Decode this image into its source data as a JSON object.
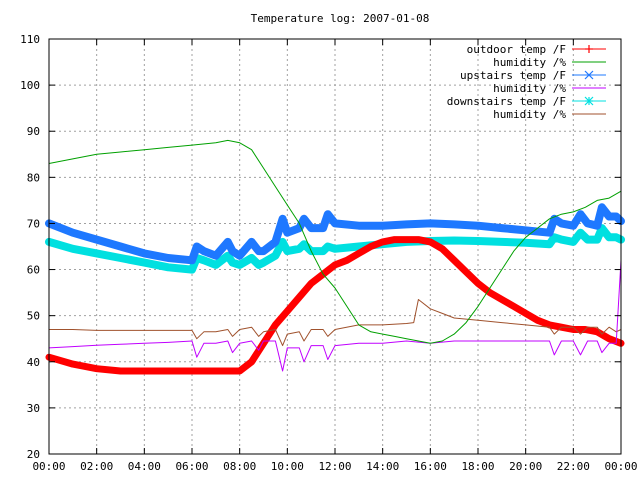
{
  "chart_data": {
    "type": "line",
    "title": "Temperature log: 2007-01-08",
    "xlabel": "",
    "ylabel": "",
    "xlim": [
      0,
      24
    ],
    "ylim": [
      20,
      110
    ],
    "grid": true,
    "legend_position": "top-right",
    "x_ticks": [
      "00:00",
      "02:00",
      "04:00",
      "06:00",
      "08:00",
      "10:00",
      "12:00",
      "14:00",
      "16:00",
      "18:00",
      "20:00",
      "22:00",
      "00:00"
    ],
    "y_ticks": [
      "20",
      "30",
      "40",
      "50",
      "60",
      "70",
      "80",
      "90",
      "100",
      "110"
    ],
    "series": [
      {
        "name": "outdoor temp /F",
        "color": "#ff0000",
        "marker": "plus",
        "x": [
          0,
          1,
          2,
          3,
          4,
          5,
          6,
          7,
          8,
          8.5,
          9,
          9.5,
          10,
          10.5,
          11,
          11.5,
          12,
          12.5,
          13,
          13.5,
          14,
          14.5,
          15,
          15.5,
          16,
          16.5,
          17,
          17.5,
          18,
          18.5,
          19,
          19.5,
          20,
          20.5,
          21,
          21.5,
          22,
          22.5,
          23,
          23.5,
          24
        ],
        "y": [
          41,
          39.5,
          38.5,
          38,
          38,
          38,
          38,
          38,
          38,
          40,
          44,
          48,
          51,
          54,
          57,
          59,
          61,
          62,
          63.5,
          65,
          66,
          66.5,
          66.5,
          66.5,
          66,
          64.5,
          62,
          59.5,
          57,
          55,
          53.5,
          52,
          50.5,
          49,
          48,
          47.5,
          47,
          47,
          46.5,
          45,
          44
        ]
      },
      {
        "name": "humidity /%",
        "color": "#00a000",
        "marker": "none",
        "x": [
          0,
          1,
          2,
          3,
          4,
          5,
          6,
          7,
          7.5,
          8,
          8.5,
          9,
          9.5,
          10,
          10.5,
          11,
          11.5,
          12,
          12.5,
          13,
          13.5,
          14,
          14.5,
          15,
          15.5,
          16,
          16.5,
          17,
          17.5,
          18,
          18.5,
          19,
          19.5,
          20,
          20.5,
          21,
          21.5,
          22,
          22.5,
          23,
          23.5,
          24
        ],
        "y": [
          83,
          84,
          85,
          85.5,
          86,
          86.5,
          87,
          87.5,
          88,
          87.5,
          86,
          82,
          78,
          74,
          70,
          64,
          59,
          56,
          52,
          48,
          46.5,
          46,
          45.5,
          45,
          44.5,
          44,
          44.5,
          46,
          48.5,
          52,
          56,
          60,
          64,
          67,
          69,
          71,
          72,
          72.5,
          73.5,
          75,
          75.5,
          77
        ]
      },
      {
        "name": "upstairs temp /F",
        "color": "#1e78ff",
        "marker": "x",
        "x": [
          0,
          1,
          2,
          3,
          4,
          5,
          6,
          6.2,
          6.5,
          7,
          7.5,
          7.7,
          8,
          8.5,
          8.8,
          9,
          9.5,
          9.8,
          10,
          10.5,
          10.7,
          11,
          11.5,
          11.7,
          12,
          13,
          14,
          15,
          16,
          17,
          18,
          19,
          20,
          21,
          21.2,
          21.5,
          22,
          22.3,
          22.6,
          23,
          23.2,
          23.5,
          23.8,
          24
        ],
        "y": [
          70,
          68,
          66.5,
          65,
          63.5,
          62.5,
          62,
          65,
          64,
          63,
          66,
          64,
          63,
          66,
          64,
          64,
          66,
          71,
          68,
          69,
          71,
          69,
          69,
          72,
          70,
          69.5,
          69.5,
          69.8,
          70,
          69.8,
          69.5,
          69,
          68.5,
          68,
          71,
          70,
          69.5,
          72,
          70,
          69.5,
          73.5,
          71.5,
          71.5,
          70.5
        ]
      },
      {
        "name": "humidity /%",
        "color": "#c000ff",
        "marker": "none",
        "x": [
          0,
          1,
          2,
          3,
          4,
          5,
          6,
          6.2,
          6.5,
          7,
          7.5,
          7.7,
          8,
          8.5,
          8.8,
          9,
          9.5,
          9.8,
          10,
          10.5,
          10.7,
          11,
          11.5,
          11.7,
          12,
          13,
          14,
          15,
          16,
          17,
          18,
          19,
          20,
          21,
          21.2,
          21.5,
          22,
          22.3,
          22.6,
          23,
          23.2,
          23.5,
          23.8,
          24
        ],
        "y": [
          43,
          43.3,
          43.6,
          43.8,
          44,
          44.2,
          44.5,
          41,
          44,
          44,
          44.5,
          42,
          44,
          44.5,
          42.5,
          44.5,
          44.5,
          38,
          43,
          43,
          40,
          43.5,
          43.5,
          40.5,
          43.5,
          44,
          44,
          44.5,
          44,
          44.5,
          44.5,
          44.5,
          44.5,
          44.5,
          41.5,
          44.5,
          44.5,
          41.5,
          44.5,
          44.5,
          42,
          44,
          44,
          62
        ]
      },
      {
        "name": "downstairs temp /F",
        "color": "#00e0e0",
        "marker": "star",
        "x": [
          0,
          1,
          2,
          3,
          4,
          5,
          6,
          6.2,
          6.5,
          7,
          7.5,
          7.7,
          8,
          8.5,
          8.8,
          9,
          9.5,
          9.8,
          10,
          10.5,
          10.7,
          11,
          11.5,
          11.7,
          12,
          13,
          14,
          15,
          16,
          17,
          18,
          19,
          20,
          21,
          21.2,
          21.5,
          22,
          22.3,
          22.6,
          23,
          23.2,
          23.5,
          23.8,
          24
        ],
        "y": [
          66,
          64.5,
          63.5,
          62.5,
          61.5,
          60.5,
          60,
          62.5,
          62,
          61,
          63,
          61.5,
          61,
          62.5,
          61,
          61.5,
          63,
          66,
          64,
          64.5,
          65.5,
          64,
          64,
          65,
          64.5,
          65,
          65.5,
          66,
          66.2,
          66.3,
          66.2,
          66,
          65.8,
          65.5,
          67,
          66.5,
          66,
          68,
          66.5,
          66.5,
          69,
          67,
          67,
          66.5
        ]
      },
      {
        "name": "humidity /%",
        "color": "#a0522d",
        "marker": "none",
        "x": [
          0,
          1,
          2,
          3,
          4,
          5,
          6,
          6.2,
          6.5,
          7,
          7.5,
          7.7,
          8,
          8.5,
          8.8,
          9,
          9.5,
          9.8,
          10,
          10.5,
          10.7,
          11,
          11.5,
          11.7,
          12,
          13,
          14,
          15,
          15.3,
          15.5,
          16,
          16.5,
          17,
          18,
          19,
          20,
          21,
          21.2,
          21.5,
          22,
          22.3,
          22.6,
          23,
          23.2,
          23.5,
          23.8,
          24
        ],
        "y": [
          47,
          47,
          46.8,
          46.8,
          46.8,
          46.8,
          46.8,
          45,
          46.5,
          46.5,
          47,
          45.5,
          47,
          47.5,
          45.5,
          46.5,
          47,
          43.5,
          46,
          46.5,
          44.5,
          47,
          47,
          45.5,
          47,
          48,
          48,
          48.3,
          48.5,
          53.5,
          51.5,
          50.5,
          49.5,
          49,
          48.5,
          48,
          47.5,
          46,
          47.5,
          47.5,
          46,
          47.5,
          47.5,
          46,
          47.5,
          46.5,
          47
        ]
      }
    ]
  }
}
